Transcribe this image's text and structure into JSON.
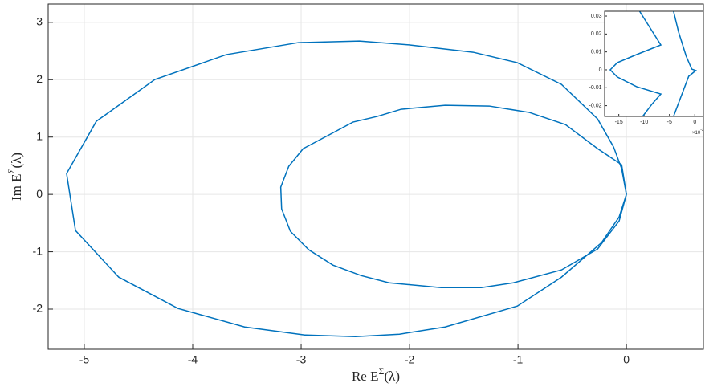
{
  "chart_data": [
    {
      "type": "line",
      "xlabel": {
        "base": "Re E",
        "sup": "Σ",
        "tail": "(λ)"
      },
      "ylabel": {
        "base": "Im E",
        "sup": "Σ",
        "tail": "(λ)"
      },
      "xlim": [
        -5.333,
        0.71
      ],
      "ylim": [
        -2.7,
        3.32
      ],
      "xticks": [
        -5,
        -4,
        -3,
        -2,
        -1,
        0
      ],
      "yticks": [
        -2,
        -1,
        0,
        1,
        2,
        3
      ],
      "grid": true,
      "series": [
        {
          "color": "#0072bd",
          "x": [
            0,
            -0.044,
            -0.118,
            -0.266,
            -0.599,
            -1.006,
            -1.413,
            -1.99,
            -2.463,
            -3.025,
            -3.691,
            -4.349,
            -4.889,
            -5.163,
            -5.081,
            -4.682,
            -4.135,
            -3.521,
            -2.966,
            -2.5,
            -2.093,
            -1.672,
            -1.006,
            -0.599,
            -0.229,
            -0.067,
            0
          ],
          "values": [
            0,
            0.448,
            0.826,
            1.317,
            1.919,
            2.297,
            2.479,
            2.605,
            2.675,
            2.647,
            2.437,
            2.003,
            1.275,
            0.364,
            -0.63,
            -1.443,
            -1.989,
            -2.311,
            -2.451,
            -2.479,
            -2.437,
            -2.311,
            -1.947,
            -1.443,
            -0.84,
            -0.392,
            0
          ]
        },
        {
          "color": "#0072bd",
          "x": [
            0,
            -0.044,
            -0.266,
            -0.562,
            -0.895,
            -1.265,
            -1.672,
            -2.078,
            -2.3,
            -2.522,
            -2.744,
            -2.981,
            -3.114,
            -3.188,
            -3.18,
            -3.099,
            -2.929,
            -2.707,
            -2.448,
            -2.189,
            -1.709,
            -1.339,
            -1.043,
            -0.599,
            -0.266,
            -0.067,
            0
          ],
          "values": [
            0,
            0.518,
            0.798,
            1.218,
            1.429,
            1.541,
            1.555,
            1.485,
            1.359,
            1.261,
            1.036,
            0.798,
            0.49,
            0.126,
            -0.252,
            -0.644,
            -0.966,
            -1.232,
            -1.415,
            -1.541,
            -1.625,
            -1.625,
            -1.541,
            -1.317,
            -0.952,
            -0.462,
            0
          ]
        }
      ]
    },
    {
      "type": "line",
      "x_exponent": {
        "base": "×10",
        "sup": "-3"
      },
      "xlim": [
        -0.0178,
        0.0017
      ],
      "ylim": [
        -0.026,
        0.0327
      ],
      "xticks": [
        {
          "value": -0.015,
          "label": "-15"
        },
        {
          "value": -0.01,
          "label": "-10"
        },
        {
          "value": -0.005,
          "label": "-5"
        },
        {
          "value": 0,
          "label": "0"
        }
      ],
      "yticks": [
        -0.02,
        -0.01,
        0,
        0.01,
        0.02,
        0.03
      ],
      "grid": false,
      "series": [
        {
          "color": "#0072bd",
          "x": [
            -0.0109,
            -0.0088,
            -0.0067,
            -0.0115,
            -0.0153,
            -0.0167,
            -0.0153,
            -0.0115,
            -0.0067,
            -0.0085,
            -0.0103
          ],
          "values": [
            0.0327,
            0.0233,
            0.0139,
            0.0085,
            0.004,
            0,
            -0.004,
            -0.0094,
            -0.0135,
            -0.0193,
            -0.026
          ]
        },
        {
          "color": "#0072bd",
          "x": [
            -0.0042,
            -0.0032,
            -0.0017,
            -0.0006,
            0.0002,
            -0.0012,
            -0.0027,
            -0.0042
          ],
          "values": [
            0.0327,
            0.0211,
            0.0076,
            0.0004,
            -0.0004,
            -0.0036,
            -0.0148,
            -0.026
          ]
        }
      ]
    }
  ]
}
